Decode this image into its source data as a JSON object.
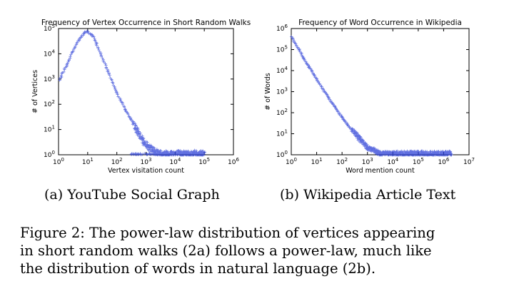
{
  "chart_data": [
    {
      "type": "scatter",
      "title": "Frequency of Vertex Occurrence in Short Random Walks",
      "xlabel": "Vertex visitation count",
      "ylabel": "# of Vertices",
      "xscale": "log",
      "yscale": "log",
      "xlim": [
        1,
        1000000
      ],
      "ylim": [
        1,
        100000
      ],
      "x_ticks": [
        "10^0",
        "10^1",
        "10^2",
        "10^3",
        "10^4",
        "10^5",
        "10^6"
      ],
      "y_ticks": [
        "10^0",
        "10^1",
        "10^2",
        "10^3",
        "10^4",
        "10^5"
      ],
      "marker": "+",
      "color": "#2b3fd6",
      "points": [
        {
          "x": 1,
          "y": 800
        },
        {
          "x": 2,
          "y": 4000
        },
        {
          "x": 3,
          "y": 12000
        },
        {
          "x": 5,
          "y": 35000
        },
        {
          "x": 8,
          "y": 70000
        },
        {
          "x": 10,
          "y": 75000
        },
        {
          "x": 15,
          "y": 50000
        },
        {
          "x": 20,
          "y": 25000
        },
        {
          "x": 30,
          "y": 8000
        },
        {
          "x": 50,
          "y": 2000
        },
        {
          "x": 100,
          "y": 300
        },
        {
          "x": 200,
          "y": 60
        },
        {
          "x": 300,
          "y": 25
        },
        {
          "x": 500,
          "y": 8
        },
        {
          "x": 800,
          "y": 3
        },
        {
          "x": 1500,
          "y": 1.5
        },
        {
          "x": 3000,
          "y": 1
        },
        {
          "x": 10000,
          "y": 1
        },
        {
          "x": 40000,
          "y": 1
        },
        {
          "x": 100000,
          "y": 1
        }
      ]
    },
    {
      "type": "scatter",
      "title": "Frequency of Word Occurrence in Wikipedia",
      "xlabel": "Word mention count",
      "ylabel": "# of Words",
      "xscale": "log",
      "yscale": "log",
      "xlim": [
        1,
        10000000
      ],
      "ylim": [
        1,
        1000000
      ],
      "x_ticks": [
        "10^0",
        "10^1",
        "10^2",
        "10^3",
        "10^4",
        "10^5",
        "10^6",
        "10^7"
      ],
      "y_ticks": [
        "10^0",
        "10^1",
        "10^2",
        "10^3",
        "10^4",
        "10^5",
        "10^6"
      ],
      "marker": "+",
      "color": "#2b3fd6",
      "points": [
        {
          "x": 1,
          "y": 400000
        },
        {
          "x": 2,
          "y": 100000
        },
        {
          "x": 3,
          "y": 40000
        },
        {
          "x": 5,
          "y": 15000
        },
        {
          "x": 10,
          "y": 4000
        },
        {
          "x": 20,
          "y": 1000
        },
        {
          "x": 50,
          "y": 200
        },
        {
          "x": 100,
          "y": 60
        },
        {
          "x": 200,
          "y": 20
        },
        {
          "x": 500,
          "y": 5
        },
        {
          "x": 1000,
          "y": 2
        },
        {
          "x": 3000,
          "y": 1
        },
        {
          "x": 10000,
          "y": 1
        },
        {
          "x": 100000,
          "y": 1
        },
        {
          "x": 1000000,
          "y": 1
        },
        {
          "x": 2000000,
          "y": 1
        }
      ]
    }
  ],
  "captions": {
    "a": "(a) YouTube Social Graph",
    "b": "(b) Wikipedia Article Text"
  },
  "figure_caption_lines": [
    "Figure 2: The power-law distribution of vertices appearing",
    "in short random walks (2a) follows a power-law, much like",
    "the distribution of words in natural language (2b)."
  ]
}
